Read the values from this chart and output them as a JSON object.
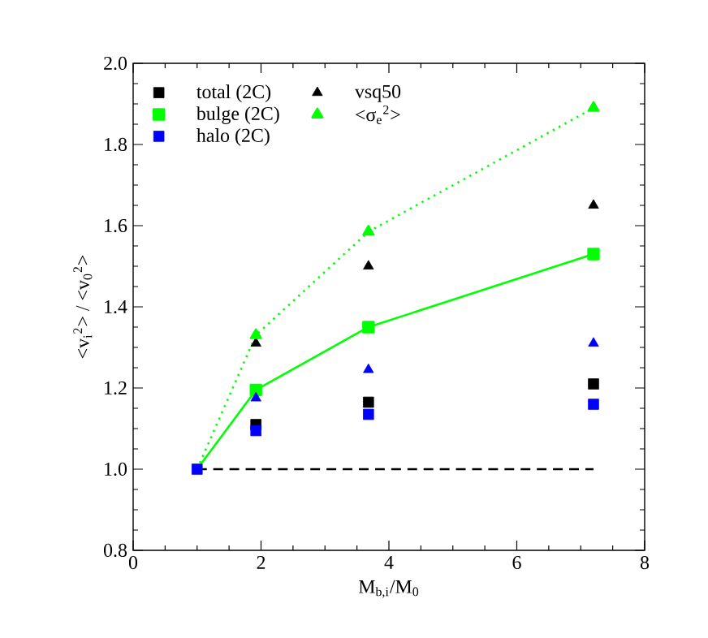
{
  "chart_data": {
    "type": "scatter",
    "xlabel": "M$_{b,i}$/M$_{0}$",
    "ylabel": "<v$_{i}$$^{2}$> / <v$_{0}$$^{2}$>",
    "xlim": [
      0,
      8
    ],
    "xticks": [
      0,
      2,
      4,
      6,
      8
    ],
    "ylim": [
      0.8,
      2.0
    ],
    "yticks": [
      {
        "value": 0.8,
        "label": "0.8"
      },
      {
        "value": 1.0,
        "label": "1.0"
      },
      {
        "value": 1.2,
        "label": "1.2"
      },
      {
        "value": 1.4,
        "label": "1.4"
      },
      {
        "value": 1.6,
        "label": "1.6"
      },
      {
        "value": 1.8,
        "label": "1.8"
      },
      {
        "value": 2.0,
        "label": "2.0"
      }
    ],
    "legend": "top left",
    "grid": false,
    "series": [
      {
        "name": "total (2C)",
        "color": "#000000",
        "marker": "square",
        "x": [
          1.92,
          3.68,
          7.2
        ],
        "values": [
          1.11,
          1.165,
          1.21
        ]
      },
      {
        "name": "vsq50",
        "color": "#000000",
        "marker": "triangle",
        "x": [
          1.92,
          3.68,
          7.2
        ],
        "values": [
          1.31,
          1.5,
          1.65
        ]
      },
      {
        "name": "bulge (2C)",
        "type": "line",
        "line_style": "solid",
        "color": "#00ff00",
        "marker": "square",
        "x": [
          1,
          1.92,
          3.68,
          7.2
        ],
        "values": [
          1.0,
          1.195,
          1.35,
          1.53
        ]
      },
      {
        "name": "<σ$_{e}$$^{2}$>",
        "type": "line",
        "line_style": "dotted",
        "color": "#00ff00",
        "marker": "triangle",
        "x": [
          1,
          1.92,
          3.68,
          7.2
        ],
        "values": [
          1.0,
          1.33,
          1.585,
          1.89
        ]
      },
      {
        "name": "halo (2C)",
        "color": "#0000ff",
        "marker": "square",
        "x": [
          1,
          1.92,
          3.68,
          7.2
        ],
        "values": [
          1.0,
          1.095,
          1.135,
          1.16
        ]
      },
      {
        "color": "#0000ff",
        "marker": "triangle",
        "x": [
          1.92,
          3.68,
          7.2
        ],
        "values": [
          1.175,
          1.245,
          1.31
        ]
      },
      {
        "type": "line",
        "line_style": "dashed",
        "color": "#000000",
        "marker": "none",
        "x": [
          1,
          7.2
        ],
        "values": [
          1.0,
          1.0
        ]
      }
    ]
  }
}
